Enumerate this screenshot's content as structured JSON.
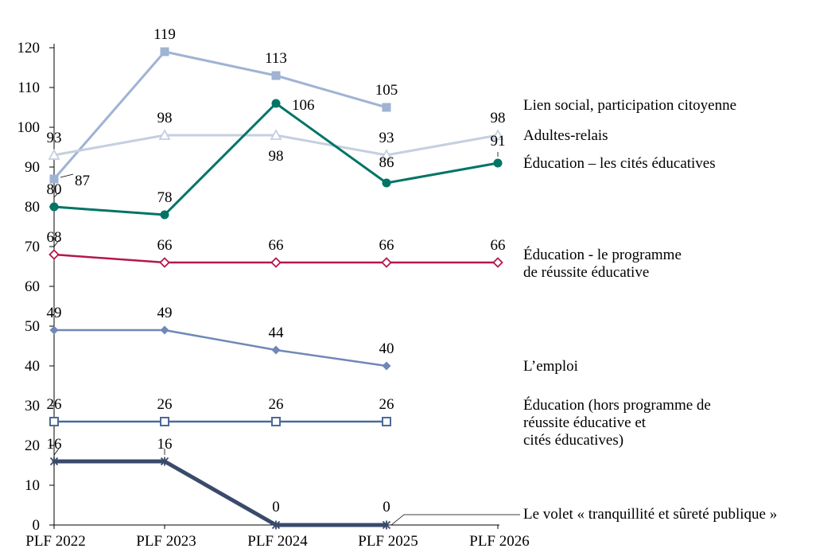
{
  "chart_data": {
    "type": "line",
    "categories": [
      "PLF 2022",
      "PLF 2023",
      "PLF 2024",
      "PLF 2025",
      "PLF 2026"
    ],
    "ylim": [
      0,
      120
    ],
    "yticks": [
      0,
      10,
      20,
      30,
      40,
      50,
      60,
      70,
      80,
      90,
      100,
      110,
      120
    ],
    "grid": false,
    "legend": "right, inline labels",
    "series": [
      {
        "name": "Lien social, participation citoyenne",
        "label_lines": [
          "Lien social, participation citoyenne"
        ],
        "values": [
          87,
          119,
          113,
          105,
          null
        ],
        "color": "#9fb3d3",
        "marker": "square-filled",
        "width": 3
      },
      {
        "name": "Adultes-relais",
        "label_lines": [
          "Adultes-relais"
        ],
        "values": [
          93,
          98,
          98,
          93,
          98
        ],
        "color": "#c5cfdf",
        "marker": "triangle-open",
        "width": 3
      },
      {
        "name": "Éducation – les cités éducatives",
        "label_lines": [
          "Éducation – les cités éducatives"
        ],
        "values": [
          80,
          78,
          106,
          86,
          91
        ],
        "color": "#007466",
        "marker": "circle-filled",
        "width": 3
      },
      {
        "name": "Éducation - le programme de réussite éducative",
        "label_lines": [
          "Éducation - le programme",
          "de réussite éducative"
        ],
        "values": [
          68,
          66,
          66,
          66,
          66
        ],
        "color": "#b5174b",
        "marker": "diamond-open",
        "width": 2.5
      },
      {
        "name": "L’emploi",
        "label_lines": [
          "L’emploi"
        ],
        "values": [
          49,
          49,
          44,
          40,
          null
        ],
        "color": "#6f88b8",
        "marker": "diamond-filled",
        "width": 2.5
      },
      {
        "name": "Éducation (hors programme de réussite éducative et cités éducatives)",
        "label_lines": [
          "Éducation (hors  programme de",
          "réussite éducative et",
          "cités éducatives)"
        ],
        "values": [
          26,
          26,
          26,
          26,
          null
        ],
        "color": "#4a6a9a",
        "marker": "square-open",
        "width": 2.5
      },
      {
        "name": "Le volet « tranquillité et sûreté publique »",
        "label_lines": [
          "Le volet « tranquillité et sûreté publique »"
        ],
        "values": [
          16,
          16,
          0,
          0,
          null
        ],
        "color": "#3a4a6b",
        "marker": "star",
        "width": 5
      }
    ],
    "data_labels": [
      {
        "series": 0,
        "point": 0,
        "text": "87"
      },
      {
        "series": 0,
        "point": 1,
        "text": "119"
      },
      {
        "series": 0,
        "point": 2,
        "text": "113"
      },
      {
        "series": 0,
        "point": 3,
        "text": "105"
      },
      {
        "series": 1,
        "point": 0,
        "text": "93"
      },
      {
        "series": 1,
        "point": 1,
        "text": "98"
      },
      {
        "series": 1,
        "point": 2,
        "text": "98"
      },
      {
        "series": 1,
        "point": 3,
        "text": "93"
      },
      {
        "series": 1,
        "point": 4,
        "text": "98"
      },
      {
        "series": 2,
        "point": 0,
        "text": "80"
      },
      {
        "series": 2,
        "point": 1,
        "text": "78"
      },
      {
        "series": 2,
        "point": 2,
        "text": "106"
      },
      {
        "series": 2,
        "point": 3,
        "text": "86"
      },
      {
        "series": 2,
        "point": 4,
        "text": "91"
      },
      {
        "series": 3,
        "point": 0,
        "text": "68"
      },
      {
        "series": 3,
        "point": 1,
        "text": "66"
      },
      {
        "series": 3,
        "point": 2,
        "text": "66"
      },
      {
        "series": 3,
        "point": 3,
        "text": "66"
      },
      {
        "series": 3,
        "point": 4,
        "text": "66"
      },
      {
        "series": 4,
        "point": 0,
        "text": "49"
      },
      {
        "series": 4,
        "point": 1,
        "text": "49"
      },
      {
        "series": 4,
        "point": 2,
        "text": "44"
      },
      {
        "series": 4,
        "point": 3,
        "text": "40"
      },
      {
        "series": 5,
        "point": 0,
        "text": "26"
      },
      {
        "series": 5,
        "point": 1,
        "text": "26"
      },
      {
        "series": 5,
        "point": 2,
        "text": "26"
      },
      {
        "series": 5,
        "point": 3,
        "text": "26"
      },
      {
        "series": 6,
        "point": 0,
        "text": "16"
      },
      {
        "series": 6,
        "point": 1,
        "text": "16"
      },
      {
        "series": 6,
        "point": 2,
        "text": "0"
      },
      {
        "series": 6,
        "point": 3,
        "text": "0"
      }
    ]
  }
}
